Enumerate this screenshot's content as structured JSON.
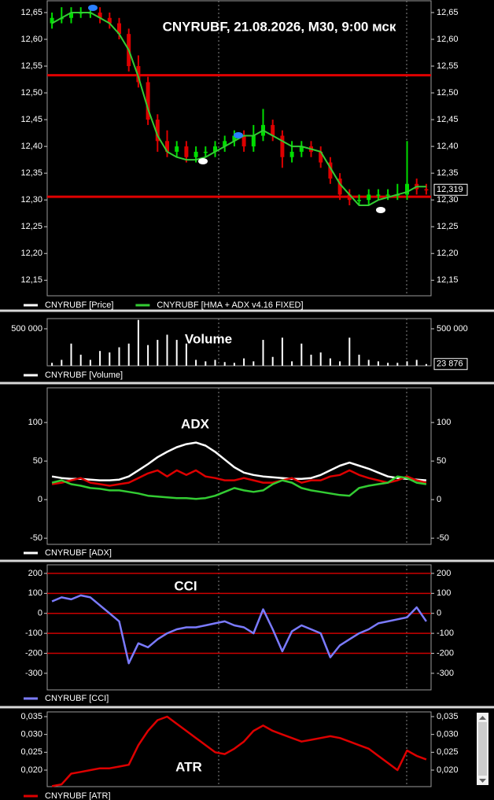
{
  "chart_data": [
    {
      "type": "candlestick",
      "title": "CNYRUBF, 21.08.2026, M30, 9:00 мск",
      "ylim": [
        12.121,
        12.672
      ],
      "yticks": [
        {
          "value": 12.65,
          "label": "12,65"
        },
        {
          "value": 12.6,
          "label": "12,60"
        },
        {
          "value": 12.55,
          "label": "12,55"
        },
        {
          "value": 12.5,
          "label": "12,50"
        },
        {
          "value": 12.45,
          "label": "12,45"
        },
        {
          "value": 12.4,
          "label": "12,40"
        },
        {
          "value": 12.35,
          "label": "12,35"
        },
        {
          "value": 12.3,
          "label": "12,30"
        },
        {
          "value": 12.25,
          "label": "12,25"
        },
        {
          "value": 12.2,
          "label": "12,20"
        },
        {
          "value": 12.15,
          "label": "12,15"
        }
      ],
      "levels": [
        12.533,
        12.306
      ],
      "level_color": "#e00000",
      "last_value": {
        "value": 12.319,
        "label": "12,319"
      },
      "series": [
        {
          "name": "CNYRUBF [Price]",
          "color": "#ffffff",
          "up_color": "#00dd00",
          "down_color": "#dd0000",
          "open": [
            12.63,
            12.64,
            12.64,
            12.65,
            12.65,
            12.65,
            12.64,
            12.63,
            12.61,
            12.55,
            12.52,
            12.45,
            12.41,
            12.39,
            12.4,
            12.38,
            12.39,
            12.39,
            12.4,
            12.41,
            12.42,
            12.4,
            12.42,
            12.44,
            12.42,
            12.38,
            12.39,
            12.4,
            12.39,
            12.37,
            12.34,
            12.31,
            12.3,
            12.3,
            12.31,
            12.31,
            12.31,
            12.31,
            12.33,
            12.32
          ],
          "high": [
            12.65,
            12.66,
            12.66,
            12.66,
            12.66,
            12.66,
            12.65,
            12.64,
            12.62,
            12.57,
            12.53,
            12.46,
            12.43,
            12.41,
            12.41,
            12.4,
            12.4,
            12.41,
            12.42,
            12.43,
            12.43,
            12.44,
            12.47,
            12.45,
            12.43,
            12.41,
            12.41,
            12.41,
            12.4,
            12.38,
            12.35,
            12.32,
            12.31,
            12.32,
            12.32,
            12.32,
            12.33,
            12.41,
            12.34,
            12.33
          ],
          "low": [
            12.62,
            12.63,
            12.63,
            12.64,
            12.64,
            12.63,
            12.62,
            12.6,
            12.54,
            12.51,
            12.44,
            12.39,
            12.38,
            12.38,
            12.37,
            12.37,
            12.38,
            12.38,
            12.39,
            12.4,
            12.39,
            12.39,
            12.41,
            12.41,
            12.36,
            12.37,
            12.38,
            12.38,
            12.36,
            12.33,
            12.3,
            12.29,
            12.29,
            12.29,
            12.3,
            12.3,
            12.3,
            12.3,
            12.31,
            12.31
          ],
          "close": [
            12.64,
            12.64,
            12.65,
            12.65,
            12.65,
            12.64,
            12.63,
            12.61,
            12.55,
            12.52,
            12.45,
            12.41,
            12.39,
            12.4,
            12.38,
            12.39,
            12.39,
            12.4,
            12.41,
            12.42,
            12.4,
            12.42,
            12.44,
            12.42,
            12.38,
            12.39,
            12.4,
            12.39,
            12.37,
            12.34,
            12.31,
            12.3,
            12.3,
            12.31,
            12.31,
            12.31,
            12.31,
            12.33,
            12.32,
            12.319
          ]
        },
        {
          "name": "CNYRUBF [HMA + ADX v4.16 FIXED]",
          "color": "#33cc33",
          "values": [
            12.63,
            12.64,
            12.65,
            12.65,
            12.65,
            12.64,
            12.63,
            12.61,
            12.58,
            12.53,
            12.47,
            12.42,
            12.39,
            12.38,
            12.375,
            12.375,
            12.38,
            12.39,
            12.4,
            12.41,
            12.42,
            12.42,
            12.43,
            12.42,
            12.41,
            12.4,
            12.4,
            12.395,
            12.39,
            12.36,
            12.33,
            12.31,
            12.29,
            12.29,
            12.3,
            12.305,
            12.31,
            12.315,
            12.325,
            12.325
          ]
        }
      ]
    },
    {
      "type": "bar",
      "title": "Volume",
      "ylim": [
        0,
        638000
      ],
      "yticks": [
        {
          "value": 500000,
          "label": "500 000"
        }
      ],
      "last_value": {
        "value": 23876,
        "label": "23 876"
      },
      "series": [
        {
          "name": "CNYRUBF [Volume]",
          "color": "#ffffff",
          "values": [
            40000,
            80000,
            300000,
            150000,
            80000,
            200000,
            180000,
            250000,
            300000,
            620000,
            280000,
            350000,
            420000,
            350000,
            300000,
            80000,
            60000,
            80000,
            50000,
            40000,
            100000,
            60000,
            350000,
            120000,
            380000,
            60000,
            300000,
            150000,
            180000,
            100000,
            60000,
            380000,
            150000,
            80000,
            60000,
            40000,
            40000,
            60000,
            80000,
            23876
          ]
        }
      ]
    },
    {
      "type": "line",
      "title": "ADX",
      "ylim": [
        -58,
        145
      ],
      "yticks": [
        100,
        50,
        0,
        -50
      ],
      "series": [
        {
          "name": "CNYRUBF [ADX]",
          "color": "#ffffff",
          "values": [
            30,
            28,
            27,
            27,
            26,
            25,
            25,
            26,
            30,
            38,
            46,
            55,
            62,
            68,
            72,
            74,
            70,
            62,
            52,
            42,
            35,
            32,
            30,
            29,
            28,
            27,
            27,
            28,
            32,
            38,
            44,
            48,
            44,
            40,
            35,
            30,
            28,
            27,
            26,
            25
          ]
        },
        {
          "color": "#dd0000",
          "values": [
            20,
            22,
            25,
            28,
            22,
            20,
            18,
            20,
            22,
            28,
            34,
            38,
            30,
            38,
            32,
            38,
            30,
            28,
            25,
            25,
            28,
            25,
            22,
            22,
            25,
            28,
            22,
            25,
            25,
            30,
            32,
            38,
            32,
            28,
            25,
            22,
            25,
            30,
            25,
            22
          ]
        },
        {
          "color": "#33cc33",
          "values": [
            22,
            25,
            20,
            18,
            15,
            14,
            12,
            12,
            10,
            8,
            5,
            4,
            3,
            2,
            2,
            1,
            2,
            5,
            10,
            15,
            12,
            10,
            12,
            20,
            25,
            22,
            15,
            12,
            10,
            8,
            6,
            5,
            15,
            18,
            20,
            22,
            30,
            28,
            22,
            20
          ]
        }
      ]
    },
    {
      "type": "line",
      "title": "CCI",
      "ylim": [
        -383,
        243
      ],
      "yticks": [
        200,
        100,
        0,
        -100,
        -200,
        -300
      ],
      "levels": [
        200,
        100,
        0,
        -100,
        -200
      ],
      "level_color": "#cc0000",
      "series": [
        {
          "name": "CNYRUBF [CCI]",
          "color": "#7b7bff",
          "values": [
            60,
            80,
            70,
            90,
            80,
            40,
            0,
            -40,
            -250,
            -150,
            -170,
            -130,
            -100,
            -80,
            -70,
            -70,
            -60,
            -50,
            -40,
            -60,
            -70,
            -100,
            20,
            -80,
            -190,
            -90,
            -60,
            -80,
            -100,
            -220,
            -160,
            -130,
            -100,
            -80,
            -50,
            -40,
            -30,
            -20,
            30,
            -40
          ]
        }
      ]
    },
    {
      "type": "line",
      "title": "ATR",
      "ylim": [
        0.01537,
        0.03632
      ],
      "yticks": [
        {
          "value": 0.035,
          "label": "0,035"
        },
        {
          "value": 0.03,
          "label": "0,030"
        },
        {
          "value": 0.025,
          "label": "0,025"
        },
        {
          "value": 0.02,
          "label": "0,020"
        }
      ],
      "series": [
        {
          "name": "CNYRUBF [ATR]",
          "color": "#dd0000",
          "values": [
            0.0155,
            0.016,
            0.019,
            0.0195,
            0.02,
            0.0205,
            0.0205,
            0.021,
            0.0215,
            0.027,
            0.031,
            0.034,
            0.035,
            0.033,
            0.031,
            0.029,
            0.027,
            0.025,
            0.0245,
            0.026,
            0.028,
            0.031,
            0.0325,
            0.031,
            0.03,
            0.029,
            0.028,
            0.0285,
            0.029,
            0.0295,
            0.029,
            0.028,
            0.027,
            0.026,
            0.024,
            0.022,
            0.02,
            0.0255,
            0.024,
            0.023
          ]
        }
      ]
    }
  ]
}
